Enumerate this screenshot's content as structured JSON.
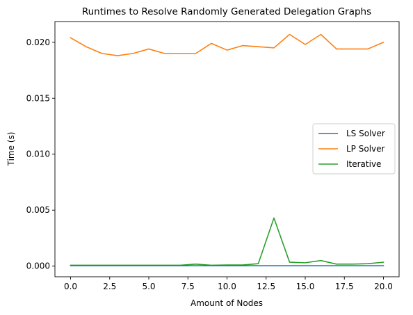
{
  "chart_data": {
    "type": "line",
    "title": "Runtimes to Resolve Randomly Generated Delegation Graphs",
    "xlabel": "Amount of Nodes",
    "ylabel": "Time (s)",
    "xlim": [
      -1,
      21
    ],
    "ylim": [
      -0.00095,
      0.02185
    ],
    "x": [
      0,
      1,
      2,
      3,
      4,
      5,
      6,
      7,
      8,
      9,
      10,
      11,
      12,
      13,
      14,
      15,
      16,
      17,
      18,
      19,
      20
    ],
    "series": [
      {
        "name": "LS Solver",
        "color": "#1f77b4",
        "values": [
          3e-05,
          3e-05,
          3e-05,
          3e-05,
          3e-05,
          3e-05,
          3e-05,
          3e-05,
          3e-05,
          3e-05,
          3e-05,
          3e-05,
          3e-05,
          3e-05,
          3e-05,
          3e-05,
          3e-05,
          3e-05,
          3e-05,
          3e-05,
          3e-05
        ]
      },
      {
        "name": "LP Solver",
        "color": "#ff7f0e",
        "values": [
          0.0204,
          0.0196,
          0.019,
          0.0188,
          0.019,
          0.0194,
          0.019,
          0.019,
          0.019,
          0.0199,
          0.0193,
          0.0197,
          0.0196,
          0.0195,
          0.0207,
          0.0198,
          0.0207,
          0.0194,
          0.0194,
          0.0194,
          0.02
        ]
      },
      {
        "name": "Iterative",
        "color": "#2ca02c",
        "values": [
          8e-05,
          8e-05,
          8e-05,
          8e-05,
          8e-05,
          8e-05,
          8e-05,
          8e-05,
          0.00018,
          8e-05,
          0.0001,
          0.0001,
          0.00022,
          0.0043,
          0.00035,
          0.0003,
          0.0005,
          0.00018,
          0.00018,
          0.00022,
          0.00035
        ]
      }
    ],
    "xticks": [
      0.0,
      2.5,
      5.0,
      7.5,
      10.0,
      12.5,
      15.0,
      17.5,
      20.0
    ],
    "xtick_labels": [
      "0.0",
      "2.5",
      "5.0",
      "7.5",
      "10.0",
      "12.5",
      "15.0",
      "17.5",
      "20.0"
    ],
    "yticks": [
      0.0,
      0.005,
      0.01,
      0.015,
      0.02
    ],
    "ytick_labels": [
      "0.000",
      "0.005",
      "0.010",
      "0.015",
      "0.020"
    ],
    "grid": false,
    "legend_position": "center-right"
  }
}
